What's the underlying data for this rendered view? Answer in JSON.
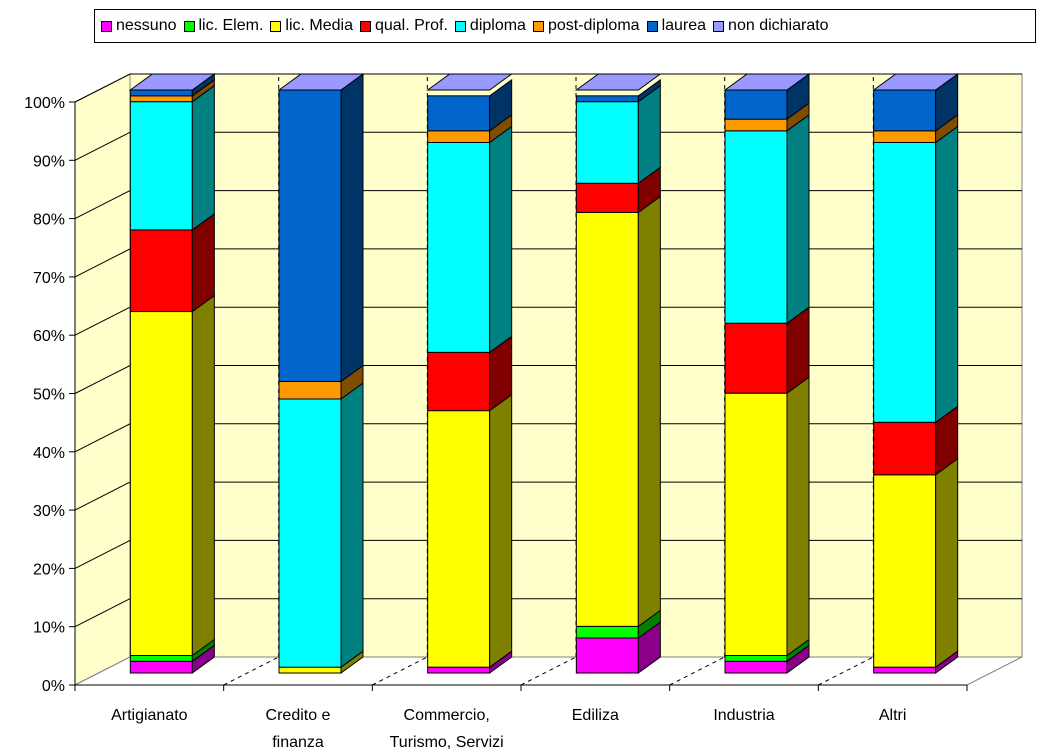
{
  "chart_data": {
    "type": "bar",
    "stacked": true,
    "percent_stacked": true,
    "three_d": true,
    "categories": [
      "Artigianato",
      "Credito e finanza",
      "Commercio, Turismo, Servizi",
      "Ediliza",
      "Industria",
      "Altri"
    ],
    "category_lines": [
      [
        "Artigianato"
      ],
      [
        "Credito e",
        "finanza"
      ],
      [
        "Commercio,",
        "Turismo, Servizi"
      ],
      [
        "Ediliza"
      ],
      [
        "Industria"
      ],
      [
        "Altri"
      ]
    ],
    "series": [
      {
        "name": "nessuno",
        "color": "#ff00ff",
        "side": "#8b008b",
        "values": [
          2,
          0,
          1,
          6,
          2,
          1
        ]
      },
      {
        "name": "lic. Elem.",
        "color": "#00ff00",
        "side": "#008000",
        "values": [
          1,
          0,
          0,
          2,
          1,
          0
        ]
      },
      {
        "name": "lic. Media",
        "color": "#ffff00",
        "side": "#808000",
        "values": [
          59,
          1,
          44,
          71,
          45,
          33
        ]
      },
      {
        "name": "qual. Prof.",
        "color": "#ff0000",
        "side": "#800000",
        "values": [
          14,
          0,
          10,
          5,
          12,
          9
        ]
      },
      {
        "name": "diploma",
        "color": "#00ffff",
        "side": "#008080",
        "values": [
          22,
          46,
          36,
          14,
          33,
          48
        ]
      },
      {
        "name": "post-diploma",
        "color": "#ff9900",
        "side": "#804c00",
        "values": [
          1,
          3,
          2,
          0,
          2,
          2
        ]
      },
      {
        "name": "laurea",
        "color": "#0066cc",
        "side": "#003366",
        "values": [
          1,
          50,
          6,
          1,
          5,
          7
        ]
      },
      {
        "name": "non dichiarato",
        "color": "#9999ff",
        "side": "#4c4c80",
        "values": [
          0,
          0,
          0,
          0,
          0,
          0
        ]
      }
    ],
    "y_ticks": [
      "0%",
      "10%",
      "20%",
      "30%",
      "40%",
      "50%",
      "60%",
      "70%",
      "80%",
      "90%",
      "100%"
    ],
    "ylim": [
      0,
      100
    ],
    "grid": true,
    "legend_position": "top",
    "wall_color": "#ffffcc"
  }
}
